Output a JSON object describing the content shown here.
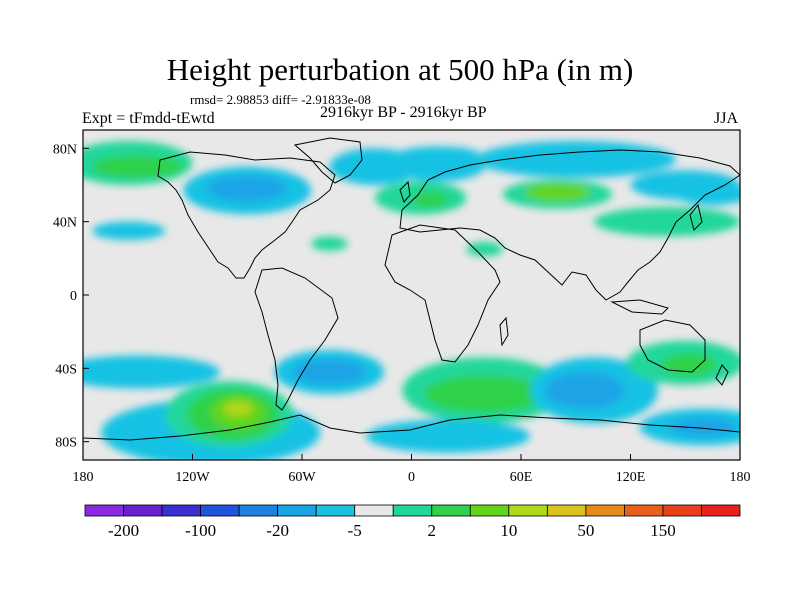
{
  "title": "Height perturbation at 500 hPa (in m)",
  "stats_line": "rmsd= 2.98853 diff= -2.91833e-08",
  "experiment": "Expt = tFmdd-tEwtd",
  "period": "2916kyr BP - 2916kyr BP",
  "season": "JJA",
  "y_ticks": [
    {
      "lat": 80,
      "label": "80N"
    },
    {
      "lat": 40,
      "label": "40N"
    },
    {
      "lat": 0,
      "label": "0"
    },
    {
      "lat": -40,
      "label": "40S"
    },
    {
      "lat": -80,
      "label": "80S"
    }
  ],
  "x_ticks": [
    {
      "lon": -180,
      "label": "180"
    },
    {
      "lon": -120,
      "label": "120W"
    },
    {
      "lon": -60,
      "label": "60W"
    },
    {
      "lon": 0,
      "label": "0"
    },
    {
      "lon": 60,
      "label": "60E"
    },
    {
      "lon": 120,
      "label": "120E"
    },
    {
      "lon": 180,
      "label": "180"
    }
  ],
  "colorbar": {
    "colors": [
      "#8a2be2",
      "#6a1fd0",
      "#3a2fd0",
      "#1f55dd",
      "#1e80e0",
      "#1aa4e6",
      "#19c2e3",
      "#e8e8e8",
      "#20d79a",
      "#2fd24a",
      "#62d41a",
      "#b0d81a",
      "#d9c21c",
      "#e68a1a",
      "#e8601a",
      "#e8401a",
      "#e8201e"
    ],
    "labels": [
      {
        "boundary": 1,
        "text": "-200"
      },
      {
        "boundary": 3,
        "text": "-100"
      },
      {
        "boundary": 5,
        "text": "-20"
      },
      {
        "boundary": 7,
        "text": "-5"
      },
      {
        "boundary": 9,
        "text": "2"
      },
      {
        "boundary": 11,
        "text": "10"
      },
      {
        "boundary": 13,
        "text": "50"
      },
      {
        "boundary": 15,
        "text": "150"
      }
    ]
  },
  "map": {
    "lon_range": [
      -180,
      180
    ],
    "lat_range": [
      -90,
      90
    ],
    "background_color": "#e8e8e8",
    "coastline_color": "#000000",
    "shading": [
      {
        "value": "#19c2e3",
        "lon": 15,
        "lat": 77,
        "rlon": 22,
        "rlat": 4
      },
      {
        "value": "#1aa4e6",
        "lon": 100,
        "lat": 75,
        "rlon": 35,
        "rlat": 8
      },
      {
        "value": "#19c2e3",
        "lon": 90,
        "lat": 74,
        "rlon": 55,
        "rlat": 10
      },
      {
        "value": "#20d79a",
        "lon": -155,
        "lat": 72,
        "rlon": 35,
        "rlat": 12
      },
      {
        "value": "#2fd24a",
        "lon": -150,
        "lat": 70,
        "rlon": 25,
        "rlat": 6
      },
      {
        "value": "#19c2e3",
        "lon": -90,
        "lat": 57,
        "rlon": 35,
        "rlat": 13
      },
      {
        "value": "#1aa4e6",
        "lon": -90,
        "lat": 58,
        "rlon": 22,
        "rlat": 7
      },
      {
        "value": "#19c2e3",
        "lon": -20,
        "lat": 70,
        "rlon": 25,
        "rlat": 10
      },
      {
        "value": "#19c2e3",
        "lon": 15,
        "lat": 70,
        "rlon": 25,
        "rlat": 8
      },
      {
        "value": "#20d79a",
        "lon": 5,
        "lat": 53,
        "rlon": 25,
        "rlat": 9
      },
      {
        "value": "#2fd24a",
        "lon": 10,
        "lat": 52,
        "rlon": 10,
        "rlat": 4
      },
      {
        "value": "#20d79a",
        "lon": 80,
        "lat": 55,
        "rlon": 30,
        "rlat": 8
      },
      {
        "value": "#62d41a",
        "lon": 80,
        "lat": 56,
        "rlon": 18,
        "rlat": 5
      },
      {
        "value": "#19c2e3",
        "lon": 150,
        "lat": 60,
        "rlon": 30,
        "rlat": 8
      },
      {
        "value": "#20d79a",
        "lon": 140,
        "lat": 40,
        "rlon": 40,
        "rlat": 8
      },
      {
        "value": "#19c2e3",
        "lon": 165,
        "lat": 55,
        "rlon": 20,
        "rlat": 6
      },
      {
        "value": "#19c2e3",
        "lon": -155,
        "lat": 35,
        "rlon": 20,
        "rlat": 5
      },
      {
        "value": "#20d79a",
        "lon": -45,
        "lat": 28,
        "rlon": 10,
        "rlat": 4
      },
      {
        "value": "#20d79a",
        "lon": 40,
        "lat": 25,
        "rlon": 10,
        "rlat": 4
      },
      {
        "value": "#19c2e3",
        "lon": -150,
        "lat": -42,
        "rlon": 45,
        "rlat": 9
      },
      {
        "value": "#19c2e3",
        "lon": -45,
        "lat": -42,
        "rlon": 30,
        "rlat": 12
      },
      {
        "value": "#1aa4e6",
        "lon": -45,
        "lat": -42,
        "rlon": 20,
        "rlat": 7
      },
      {
        "value": "#19c2e3",
        "lon": -110,
        "lat": -75,
        "rlon": 60,
        "rlat": 18
      },
      {
        "value": "#20d79a",
        "lon": -100,
        "lat": -65,
        "rlon": 35,
        "rlat": 18
      },
      {
        "value": "#2fd24a",
        "lon": -98,
        "lat": -65,
        "rlon": 25,
        "rlat": 14
      },
      {
        "value": "#62d41a",
        "lon": -95,
        "lat": -64,
        "rlon": 15,
        "rlat": 9
      },
      {
        "value": "#b0d81a",
        "lon": -95,
        "lat": -62,
        "rlon": 8,
        "rlat": 4
      },
      {
        "value": "#20d79a",
        "lon": 40,
        "lat": -52,
        "rlon": 45,
        "rlat": 18
      },
      {
        "value": "#2fd24a",
        "lon": 40,
        "lat": -54,
        "rlon": 33,
        "rlat": 10
      },
      {
        "value": "#19c2e3",
        "lon": 20,
        "lat": -77,
        "rlon": 45,
        "rlat": 9
      },
      {
        "value": "#19c2e3",
        "lon": 100,
        "lat": -52,
        "rlon": 35,
        "rlat": 18
      },
      {
        "value": "#1aa4e6",
        "lon": 95,
        "lat": -52,
        "rlon": 22,
        "rlat": 10
      },
      {
        "value": "#20d79a",
        "lon": 150,
        "lat": -37,
        "rlon": 32,
        "rlat": 12
      },
      {
        "value": "#2fd24a",
        "lon": 152,
        "lat": -38,
        "rlon": 15,
        "rlat": 6
      },
      {
        "value": "#19c2e3",
        "lon": 160,
        "lat": -72,
        "rlon": 35,
        "rlat": 10
      },
      {
        "value": "#1aa4e6",
        "lon": 160,
        "lat": -72,
        "rlon": 18,
        "rlat": 5
      }
    ]
  }
}
